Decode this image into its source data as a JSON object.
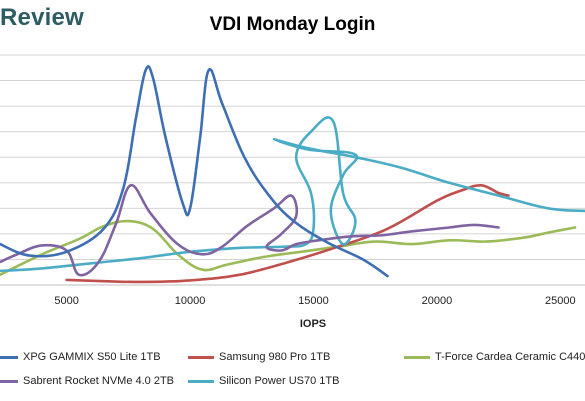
{
  "header": {
    "brand": "Review"
  },
  "chart_data": {
    "type": "line",
    "title": "VDI Monday Login",
    "xlabel": "IOPS",
    "ylabel": "",
    "xlim": [
      2300,
      26000
    ],
    "ylim": [
      0,
      9
    ],
    "x_ticks": [
      5000,
      10000,
      15000,
      20000,
      25000
    ],
    "x_tick_labels": [
      "5000",
      "10000",
      "15000",
      "20000",
      "25000"
    ],
    "grid": true,
    "legend": "bottom",
    "series": [
      {
        "name": "XPG GAMMIX S50 Lite 1TB",
        "color": "#3f6fb3",
        "points": [
          [
            2300,
            1.6
          ],
          [
            3500,
            1.15
          ],
          [
            5000,
            1.3
          ],
          [
            6500,
            2.2
          ],
          [
            7300,
            3.8
          ],
          [
            7800,
            6.5
          ],
          [
            8200,
            8.4
          ],
          [
            8500,
            8.1
          ],
          [
            9000,
            5.8
          ],
          [
            9700,
            3.2
          ],
          [
            10000,
            3.0
          ],
          [
            10400,
            5.7
          ],
          [
            10750,
            8.4
          ],
          [
            11300,
            7.1
          ],
          [
            12200,
            5.0
          ],
          [
            13200,
            3.5
          ],
          [
            14200,
            2.5
          ],
          [
            15500,
            1.7
          ],
          [
            17000,
            1.0
          ],
          [
            18000,
            0.35
          ]
        ]
      },
      {
        "name": "Samsung 980 Pro 1TB",
        "color": "#c0504d",
        "points": [
          [
            5000,
            0.2
          ],
          [
            6500,
            0.15
          ],
          [
            8000,
            0.12
          ],
          [
            10000,
            0.18
          ],
          [
            12000,
            0.4
          ],
          [
            14000,
            0.9
          ],
          [
            16000,
            1.5
          ],
          [
            18000,
            2.2
          ],
          [
            20000,
            3.3
          ],
          [
            21000,
            3.7
          ],
          [
            21800,
            3.9
          ],
          [
            22500,
            3.6
          ],
          [
            22900,
            3.5
          ]
        ]
      },
      {
        "name": "T-Force Cardea Ceramic C440",
        "color": "#9bbb59",
        "points": [
          [
            2300,
            0.4
          ],
          [
            4000,
            1.2
          ],
          [
            5500,
            1.8
          ],
          [
            6500,
            2.3
          ],
          [
            7500,
            2.5
          ],
          [
            8500,
            2.2
          ],
          [
            9500,
            1.2
          ],
          [
            10500,
            0.6
          ],
          [
            11500,
            0.8
          ],
          [
            13000,
            1.1
          ],
          [
            14500,
            1.3
          ],
          [
            16000,
            1.5
          ],
          [
            17500,
            1.7
          ],
          [
            19000,
            1.6
          ],
          [
            20500,
            1.75
          ],
          [
            22000,
            1.7
          ],
          [
            23500,
            1.85
          ],
          [
            24500,
            2.05
          ],
          [
            25600,
            2.25
          ]
        ]
      },
      {
        "name": "Sabrent Rocket NVMe 4.0 2TB",
        "color": "#8064a2",
        "points": [
          [
            2300,
            0.9
          ],
          [
            3000,
            1.2
          ],
          [
            4000,
            1.55
          ],
          [
            5000,
            1.35
          ],
          [
            5500,
            0.4
          ],
          [
            6300,
            0.9
          ],
          [
            7000,
            2.4
          ],
          [
            7600,
            3.9
          ],
          [
            8400,
            2.8
          ],
          [
            9500,
            1.6
          ],
          [
            10500,
            1.2
          ],
          [
            11300,
            1.5
          ],
          [
            12300,
            2.3
          ],
          [
            13400,
            3.0
          ],
          [
            14100,
            3.5
          ],
          [
            14300,
            2.7
          ],
          [
            13700,
            2.0
          ],
          [
            13100,
            1.5
          ],
          [
            13700,
            1.35
          ],
          [
            14300,
            1.6
          ],
          [
            15200,
            1.75
          ],
          [
            16500,
            1.9
          ],
          [
            17800,
            1.95
          ],
          [
            19000,
            2.1
          ],
          [
            20500,
            2.25
          ],
          [
            21500,
            2.35
          ],
          [
            22500,
            2.25
          ]
        ]
      },
      {
        "name": "Silicon Power US70 1TB",
        "color": "#4bacc6",
        "points": [
          [
            2300,
            0.55
          ],
          [
            4000,
            0.65
          ],
          [
            6000,
            0.85
          ],
          [
            8000,
            1.05
          ],
          [
            10000,
            1.3
          ],
          [
            12000,
            1.45
          ],
          [
            13800,
            1.5
          ],
          [
            14700,
            1.6
          ],
          [
            15000,
            2.2
          ],
          [
            14900,
            3.6
          ],
          [
            14300,
            5.0
          ],
          [
            14900,
            6.0
          ],
          [
            15800,
            6.4
          ],
          [
            16200,
            3.6
          ],
          [
            16700,
            2.5
          ],
          [
            16200,
            1.6
          ],
          [
            15700,
            2.9
          ],
          [
            16200,
            4.3
          ],
          [
            16700,
            5.1
          ],
          [
            14800,
            5.3
          ],
          [
            13400,
            5.7
          ],
          [
            14800,
            5.35
          ],
          [
            16700,
            5.0
          ],
          [
            18500,
            4.6
          ],
          [
            20500,
            4.0
          ],
          [
            22500,
            3.5
          ],
          [
            24500,
            3.0
          ],
          [
            26000,
            2.9
          ]
        ]
      }
    ]
  }
}
